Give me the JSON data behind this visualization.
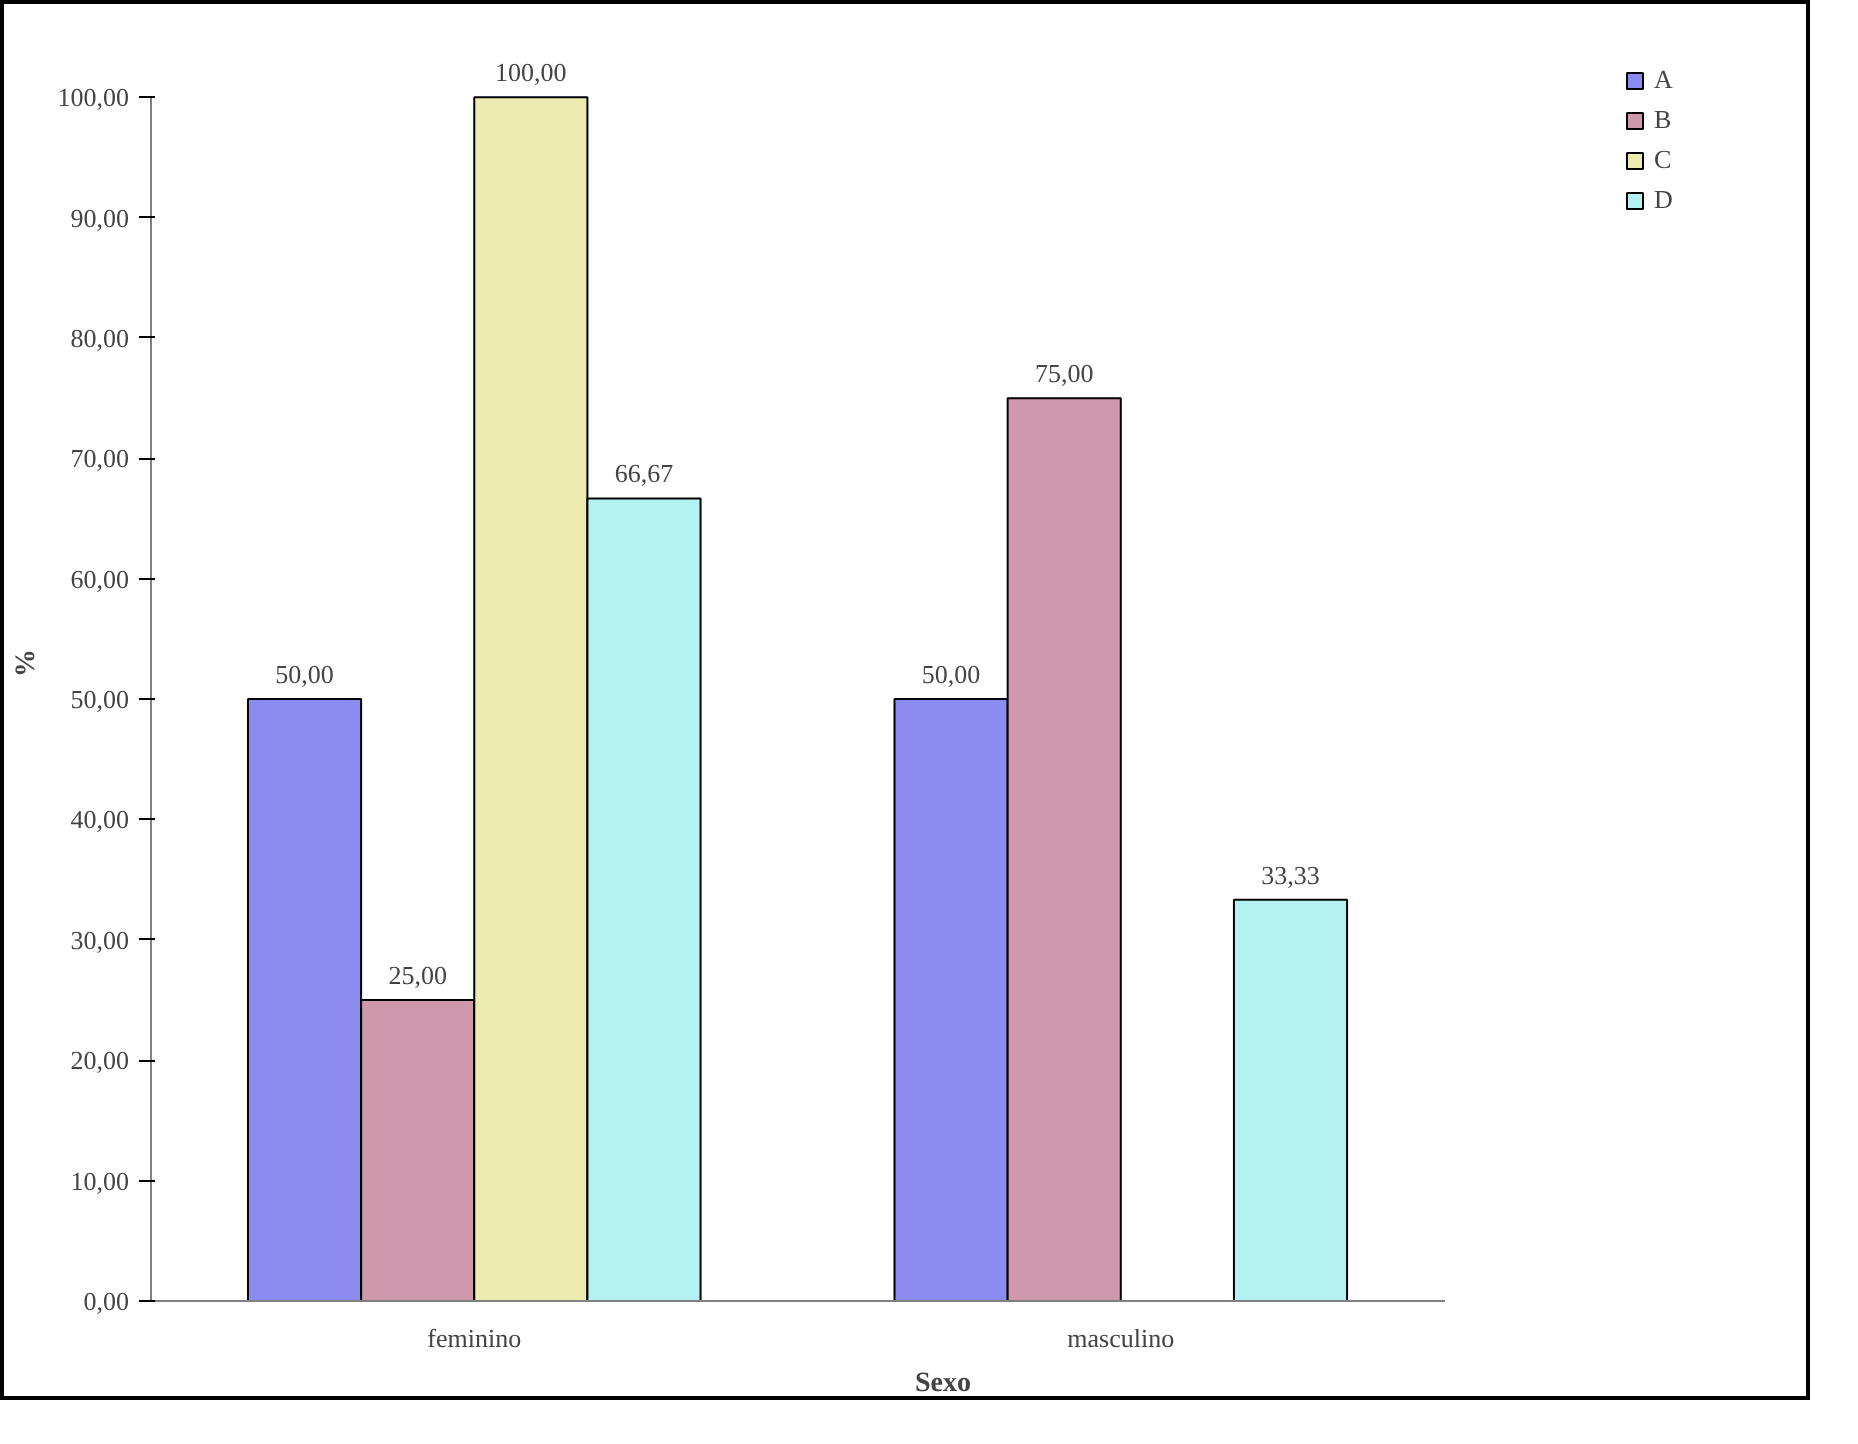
{
  "chart_data": {
    "type": "bar",
    "xlabel": "Sexo",
    "ylabel": "%",
    "categories": [
      "feminino",
      "masculino"
    ],
    "series": [
      {
        "name": "A",
        "color": "#8c8cf0",
        "values": [
          50,
          50
        ],
        "value_labels": [
          "50,00",
          "50,00"
        ]
      },
      {
        "name": "B",
        "color": "#d098ac",
        "values": [
          25,
          75
        ],
        "value_labels": [
          "25,00",
          "75,00"
        ]
      },
      {
        "name": "C",
        "color": "#ececb0",
        "values": [
          100,
          null
        ],
        "value_labels": [
          "100,00",
          null
        ]
      },
      {
        "name": "D",
        "color": "#b4f2f2",
        "values": [
          66.67,
          33.33
        ],
        "value_labels": [
          "66,67",
          "33,33"
        ]
      }
    ],
    "ylim": [
      0,
      100
    ],
    "yticks": [
      {
        "value": 0,
        "label": "0,00"
      },
      {
        "value": 10,
        "label": "10,00"
      },
      {
        "value": 20,
        "label": "20,00"
      },
      {
        "value": 30,
        "label": "30,00"
      },
      {
        "value": 40,
        "label": "40,00"
      },
      {
        "value": 50,
        "label": "50,00"
      },
      {
        "value": 60,
        "label": "60,00"
      },
      {
        "value": 70,
        "label": "70,00"
      },
      {
        "value": 80,
        "label": "80,00"
      },
      {
        "value": 90,
        "label": "90,00"
      },
      {
        "value": 100,
        "label": "100,00"
      }
    ],
    "grid": false,
    "legend": "right"
  }
}
